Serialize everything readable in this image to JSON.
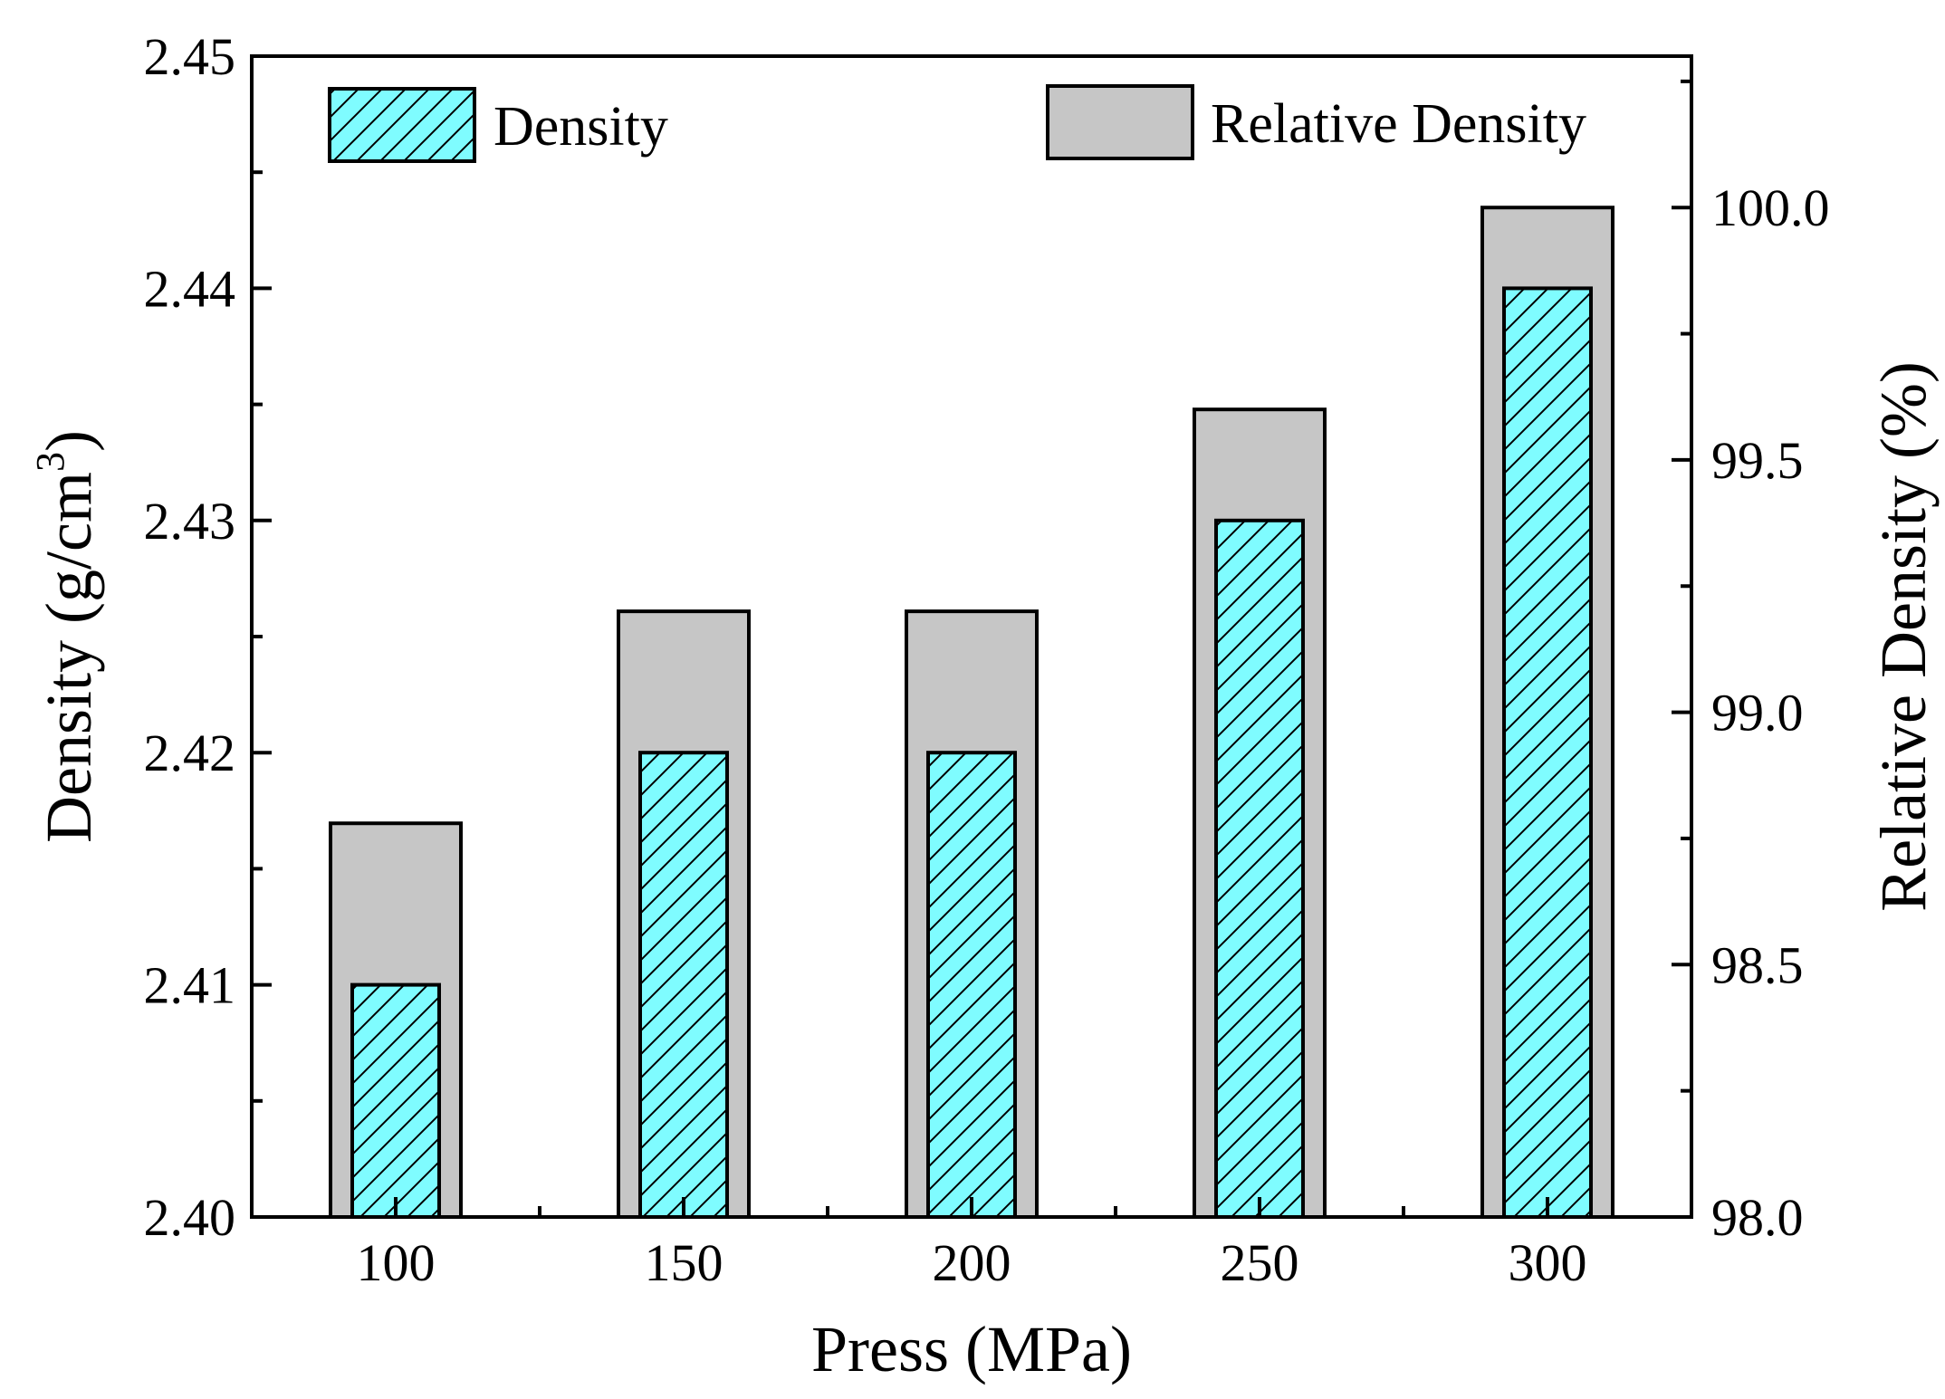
{
  "chart_data": {
    "type": "bar",
    "title": "",
    "xlabel": "Press (MPa)",
    "ylabel": "Density (g/cm",
    "ylabel_superscript": "3",
    "ylabel_close": ")",
    "y2label": "Relative Density (%)",
    "categories": [
      "100",
      "150",
      "200",
      "250",
      "300"
    ],
    "series": [
      {
        "name": "Density",
        "axis": "left",
        "values": [
          2.41,
          2.42,
          2.42,
          2.43,
          2.44
        ],
        "color": "#7ffcff",
        "pattern": "diagonal-hatch"
      },
      {
        "name": "Relative Density",
        "axis": "right",
        "values": [
          98.78,
          99.2,
          99.2,
          99.6,
          100.0
        ],
        "color": "#c6c6c6",
        "pattern": "solid"
      }
    ],
    "ylim": [
      2.4,
      2.45
    ],
    "y2lim": [
      98.0,
      100.3
    ],
    "yticks": [
      "2.40",
      "2.41",
      "2.42",
      "2.43",
      "2.44",
      "2.45"
    ],
    "y2ticks": [
      "98.0",
      "98.5",
      "99.0",
      "99.5",
      "100.0"
    ],
    "grid": false,
    "legend_position": "top"
  },
  "colors": {
    "axis": "#000000",
    "density_fill": "#7ffcff",
    "relative_fill": "#c6c6c6",
    "background": "#ffffff"
  }
}
